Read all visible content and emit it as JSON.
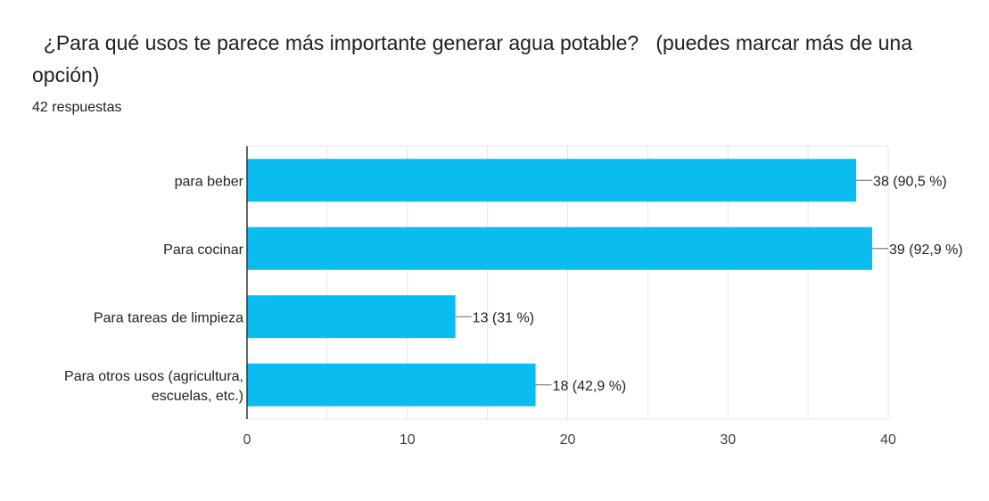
{
  "title": "  ¿Para qué usos te parece más importante generar agua potable?   (puedes marcar más de una opción)",
  "subtitle": "42 respuestas",
  "colors": {
    "bar": "#0BBCF1",
    "grid": "#e6e6e6",
    "axis": "#333333"
  },
  "chart_data": {
    "type": "bar",
    "orientation": "horizontal",
    "categories": [
      [
        "para beber"
      ],
      [
        "Para cocinar"
      ],
      [
        "Para tareas de limpieza"
      ],
      [
        "Para otros usos (agricultura,",
        "escuelas, etc.)"
      ]
    ],
    "values": [
      38,
      39,
      13,
      18
    ],
    "data_labels": [
      "38 (90,5 %)",
      "39 (92,9 %)",
      "13 (31 %)",
      "18 (42,9 %)"
    ],
    "xlim": [
      0,
      40
    ],
    "x_ticks": [
      0,
      10,
      20,
      30,
      40
    ],
    "grid": true
  }
}
